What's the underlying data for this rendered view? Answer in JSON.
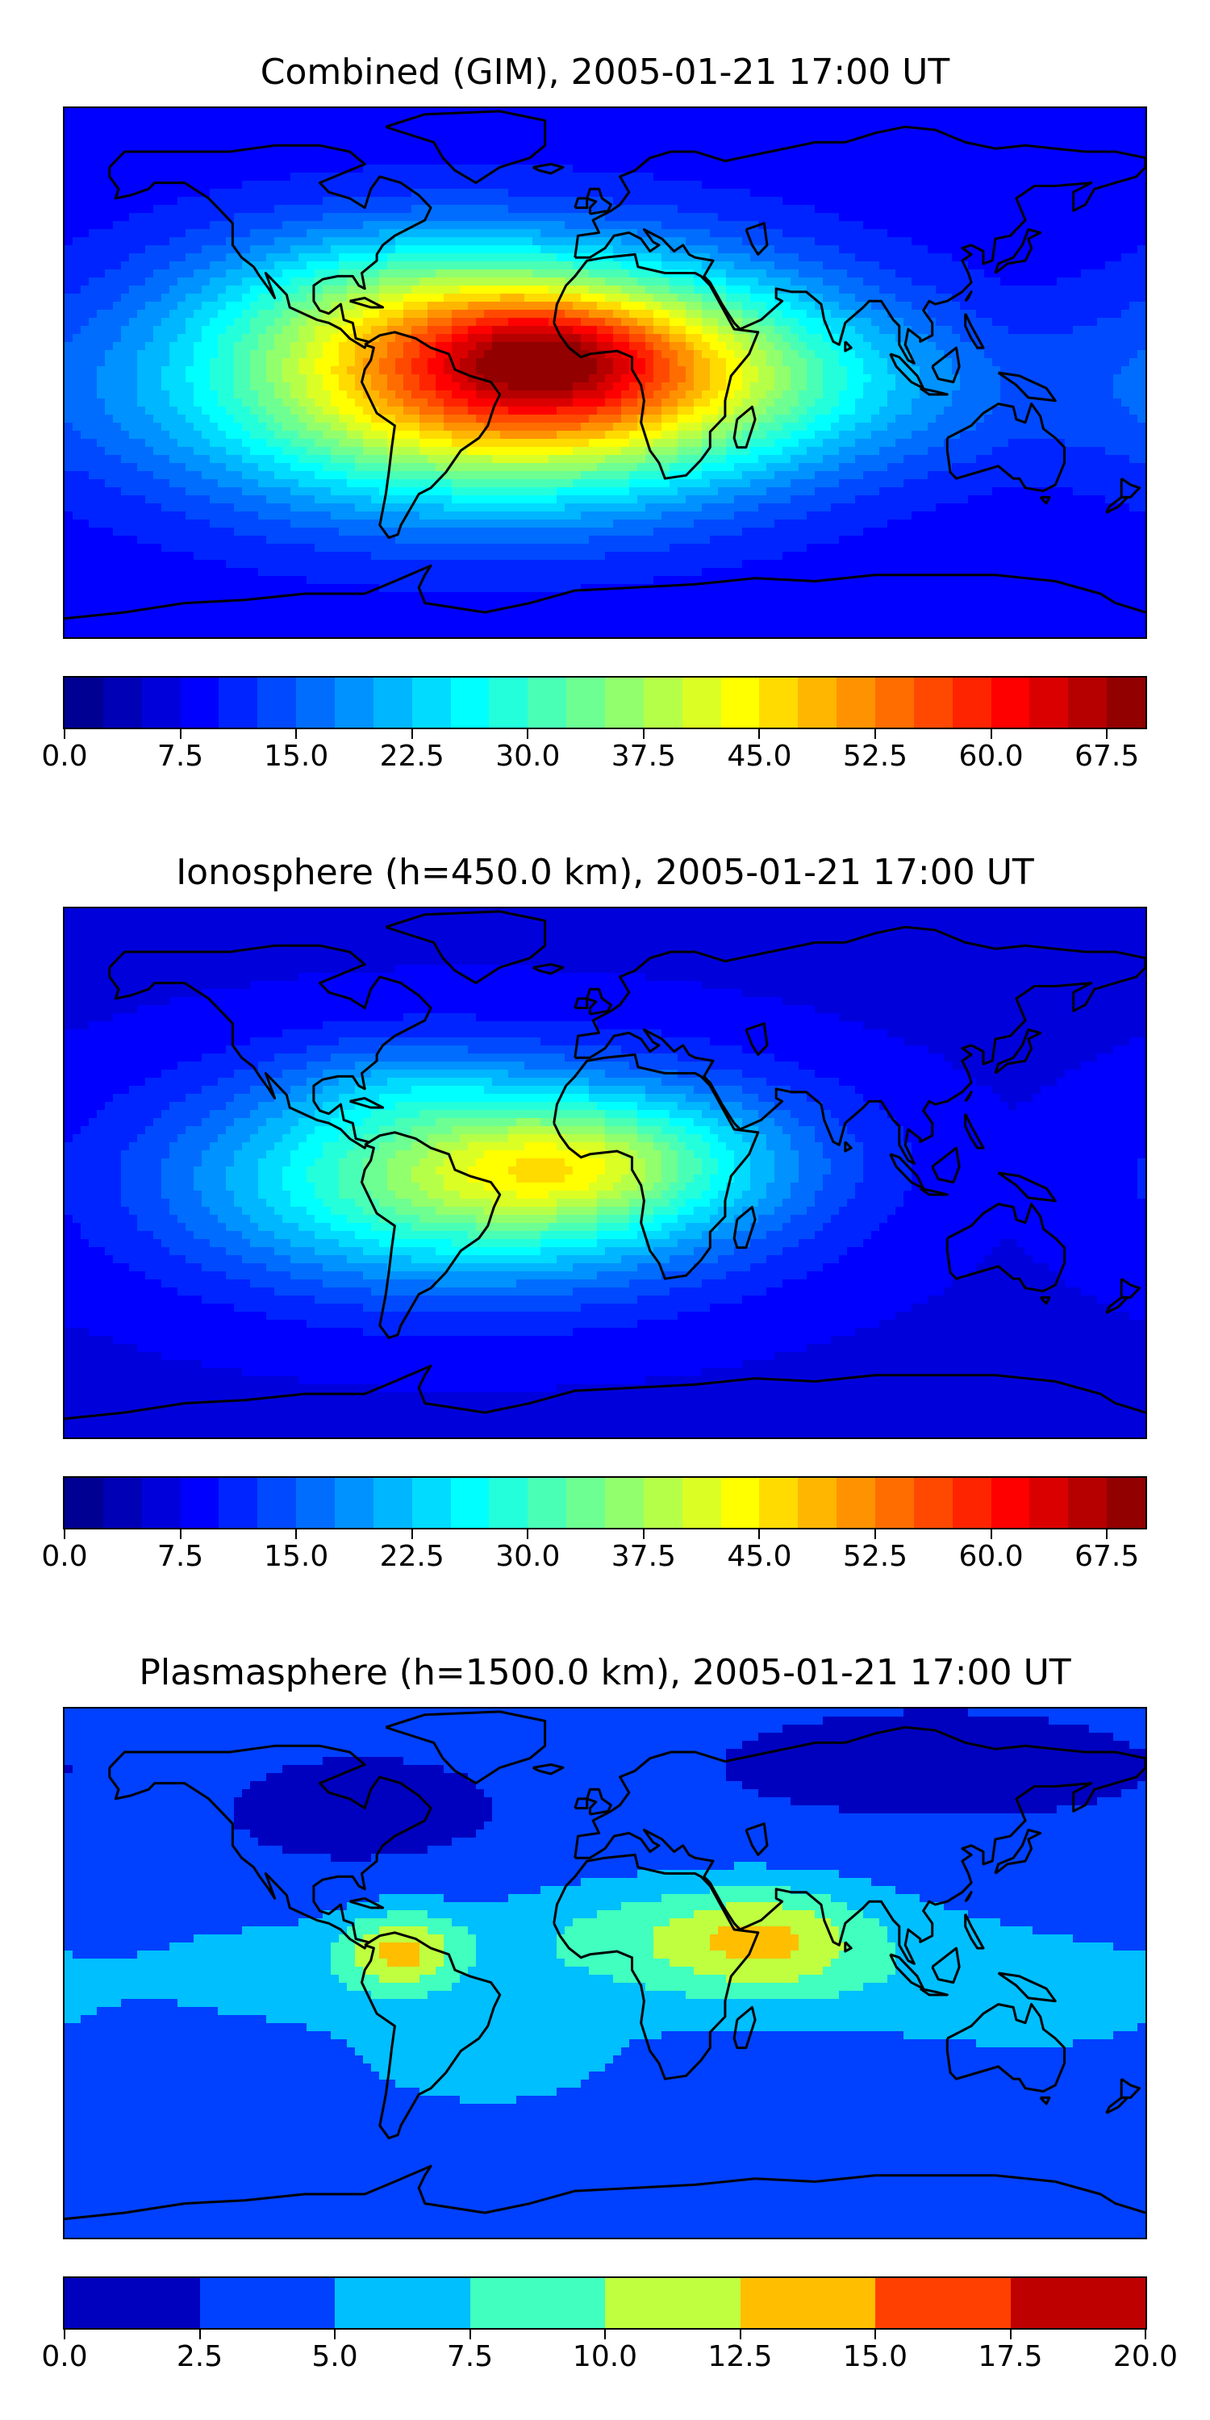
{
  "panels": [
    {
      "title": "Combined (GIM), 2005-01-21 17:00 UT",
      "colorbar": {
        "min": 0,
        "max": 70,
        "levels": 28,
        "tick_labels": [
          "0.0",
          "7.5",
          "15.0",
          "22.5",
          "30.0",
          "37.5",
          "45.0",
          "52.5",
          "60.0",
          "67.5"
        ],
        "tick_values": [
          0,
          7.5,
          15,
          22.5,
          30,
          37.5,
          45,
          52.5,
          60,
          67.5
        ]
      },
      "field": {
        "background_value": 8,
        "blobs": [
          {
            "lon": -45,
            "lat": -3,
            "sx": 70,
            "sy": 28,
            "amp": 37
          },
          {
            "lon": -20,
            "lat": 6,
            "sx": 25,
            "sy": 12,
            "amp": 10
          },
          {
            "lon": -10,
            "lat": -8,
            "sx": 55,
            "sy": 22,
            "amp": 10
          },
          {
            "lon": 10,
            "lat": 5,
            "sx": 55,
            "sy": 20,
            "amp": 12
          },
          {
            "lon": -75,
            "lat": 25,
            "sx": 40,
            "sy": 15,
            "amp": 6
          },
          {
            "lon": 100,
            "lat": -8,
            "sx": 60,
            "sy": 18,
            "amp": 5
          }
        ]
      }
    },
    {
      "title": "Ionosphere  (h=450.0 km), 2005-01-21 17:00 UT",
      "colorbar": {
        "min": 0,
        "max": 70,
        "levels": 28,
        "tick_labels": [
          "0.0",
          "7.5",
          "15.0",
          "22.5",
          "30.0",
          "37.5",
          "45.0",
          "52.5",
          "60.0",
          "67.5"
        ],
        "tick_values": [
          0,
          7.5,
          15,
          22.5,
          30,
          37.5,
          45,
          52.5,
          60,
          67.5
        ]
      },
      "field": {
        "background_value": 7,
        "blobs": [
          {
            "lon": -45,
            "lat": -3,
            "sx": 65,
            "sy": 24,
            "amp": 28
          },
          {
            "lon": -15,
            "lat": 0,
            "sx": 30,
            "sy": 12,
            "amp": 7
          },
          {
            "lon": 10,
            "lat": 5,
            "sx": 45,
            "sy": 16,
            "amp": 8
          },
          {
            "lon": -70,
            "lat": 28,
            "sx": 25,
            "sy": 10,
            "amp": 4
          }
        ]
      }
    },
    {
      "title": "Plasmasphere (h=1500.0 km), 2005-01-21 17:00 UT",
      "colorbar": {
        "min": 0,
        "max": 20,
        "levels": 8,
        "tick_labels": [
          "0.0",
          "2.5",
          "5.0",
          "7.5",
          "10.0",
          "12.5",
          "15.0",
          "17.5",
          "20.0"
        ],
        "tick_values": [
          0,
          2.5,
          5,
          7.5,
          10,
          12.5,
          15,
          17.5,
          20
        ]
      },
      "field": {
        "background_value": 2.8,
        "blobs": [
          {
            "lon": -68,
            "lat": 6,
            "sx": 14,
            "sy": 9,
            "amp": 8
          },
          {
            "lon": 15,
            "lat": 10,
            "sx": 45,
            "sy": 14,
            "amp": 5
          },
          {
            "lon": 55,
            "lat": 10,
            "sx": 22,
            "sy": 12,
            "amp": 5
          },
          {
            "lon": 90,
            "lat": 0,
            "sx": 60,
            "sy": 20,
            "amp": 3
          },
          {
            "lon": -40,
            "lat": -30,
            "sx": 40,
            "sy": 15,
            "amp": 3
          },
          {
            "lon": -110,
            "lat": 0,
            "sx": 40,
            "sy": 15,
            "amp": 3
          },
          {
            "lon": 150,
            "lat": -10,
            "sx": 30,
            "sy": 12,
            "amp": 2.5
          },
          {
            "lon": -80,
            "lat": 50,
            "sx": 25,
            "sy": 10,
            "amp": -1.5
          },
          {
            "lon": 110,
            "lat": 65,
            "sx": 40,
            "sy": 10,
            "amp": -1.5
          }
        ]
      }
    }
  ]
}
